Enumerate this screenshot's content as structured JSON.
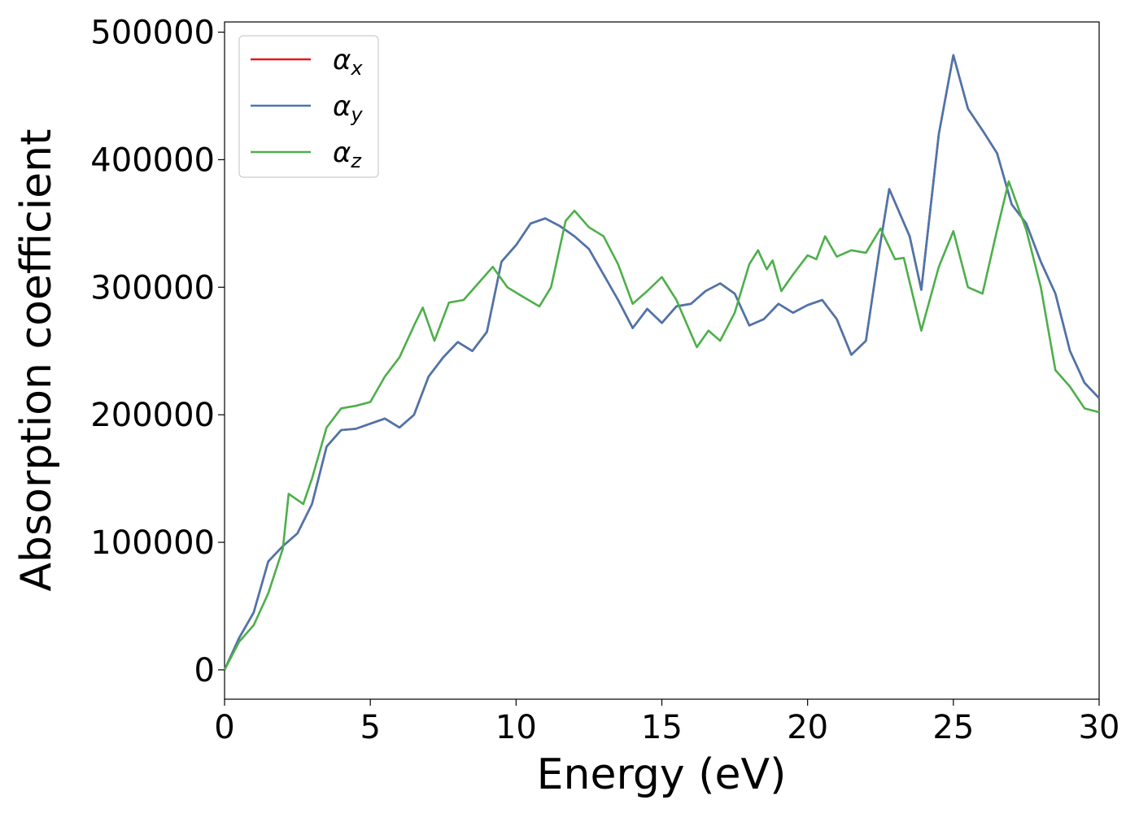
{
  "chart_data": {
    "type": "line",
    "xlabel": "Energy (eV)",
    "ylabel": "Absorption coefficient",
    "xlim": [
      0,
      30
    ],
    "xticks": [
      0,
      5,
      10,
      15,
      20,
      25,
      30
    ],
    "ylim": [
      -23000,
      508000
    ],
    "yticks": [
      0,
      100000,
      200000,
      300000,
      400000,
      500000
    ],
    "legend": "upper left",
    "series": [
      {
        "name": "αx",
        "color": "#e41a1c",
        "x": [
          0,
          0.5,
          1,
          1.5,
          2,
          2.5,
          3,
          3.5,
          4,
          4.5,
          5,
          5.5,
          6,
          6.5,
          7,
          7.5,
          8,
          8.5,
          9,
          9.5,
          10,
          10.5,
          11,
          11.5,
          12,
          12.5,
          13,
          13.5,
          14,
          14.5,
          15,
          15.5,
          16,
          16.5,
          17,
          17.5,
          18,
          18.5,
          19,
          19.5,
          20,
          20.5,
          21,
          21.5,
          22,
          22.5,
          22.8,
          23.5,
          23.9,
          24.5,
          25,
          25.5,
          26,
          26.5,
          27,
          27.5,
          28,
          28.5,
          29,
          29.5,
          30
        ],
        "values": [
          0,
          25000,
          45000,
          85000,
          97000,
          107000,
          130000,
          175000,
          188000,
          189000,
          193000,
          197000,
          190000,
          200000,
          230000,
          245000,
          257000,
          250000,
          265000,
          320000,
          333000,
          350000,
          354000,
          348000,
          340000,
          330000,
          310000,
          290000,
          268000,
          283000,
          272000,
          285000,
          287000,
          297000,
          303000,
          295000,
          270000,
          275000,
          287000,
          280000,
          286000,
          290000,
          275000,
          247000,
          258000,
          335000,
          377000,
          340000,
          298000,
          420000,
          482000,
          440000,
          423000,
          405000,
          365000,
          350000,
          320000,
          295000,
          250000,
          225000,
          213000
        ]
      },
      {
        "name": "αy",
        "color": "#4a76ac",
        "x": [
          0,
          0.5,
          1,
          1.5,
          2,
          2.5,
          3,
          3.5,
          4,
          4.5,
          5,
          5.5,
          6,
          6.5,
          7,
          7.5,
          8,
          8.5,
          9,
          9.5,
          10,
          10.5,
          11,
          11.5,
          12,
          12.5,
          13,
          13.5,
          14,
          14.5,
          15,
          15.5,
          16,
          16.5,
          17,
          17.5,
          18,
          18.5,
          19,
          19.5,
          20,
          20.5,
          21,
          21.5,
          22,
          22.5,
          22.8,
          23.5,
          23.9,
          24.5,
          25,
          25.5,
          26,
          26.5,
          27,
          27.5,
          28,
          28.5,
          29,
          29.5,
          30
        ],
        "values": [
          0,
          25000,
          45000,
          85000,
          97000,
          107000,
          130000,
          175000,
          188000,
          189000,
          193000,
          197000,
          190000,
          200000,
          230000,
          245000,
          257000,
          250000,
          265000,
          320000,
          333000,
          350000,
          354000,
          348000,
          340000,
          330000,
          310000,
          290000,
          268000,
          283000,
          272000,
          285000,
          287000,
          297000,
          303000,
          295000,
          270000,
          275000,
          287000,
          280000,
          286000,
          290000,
          275000,
          247000,
          258000,
          335000,
          377000,
          340000,
          298000,
          420000,
          482000,
          440000,
          423000,
          405000,
          365000,
          350000,
          320000,
          295000,
          250000,
          225000,
          213000
        ]
      },
      {
        "name": "αz",
        "color": "#4daf4a",
        "x": [
          0,
          0.5,
          1,
          1.5,
          2,
          2.2,
          2.7,
          3,
          3.5,
          4,
          4.5,
          5,
          5.5,
          6,
          6.5,
          6.8,
          7.2,
          7.7,
          8.2,
          8.7,
          9.2,
          9.7,
          10.2,
          10.8,
          11.2,
          11.7,
          12,
          12.5,
          13,
          13.5,
          14,
          14.5,
          15,
          15.5,
          16.2,
          16.6,
          17,
          17.5,
          18,
          18.3,
          18.6,
          18.8,
          19.1,
          19.5,
          20,
          20.3,
          20.6,
          21,
          21.5,
          22,
          22.5,
          23,
          23.3,
          23.9,
          24.5,
          25,
          25.5,
          26,
          26.5,
          26.9,
          27.5,
          28,
          28.5,
          29,
          29.5,
          30
        ],
        "values": [
          0,
          22000,
          35000,
          60000,
          95000,
          138000,
          130000,
          150000,
          190000,
          205000,
          207000,
          210000,
          230000,
          245000,
          270000,
          284000,
          258000,
          288000,
          290000,
          303000,
          316000,
          300000,
          293000,
          285000,
          300000,
          352000,
          360000,
          347000,
          340000,
          318000,
          287000,
          297000,
          308000,
          290000,
          253000,
          266000,
          258000,
          280000,
          318000,
          329000,
          314000,
          321000,
          297000,
          310000,
          325000,
          322000,
          340000,
          324000,
          329000,
          327000,
          346000,
          322000,
          323000,
          266000,
          316000,
          344000,
          300000,
          295000,
          345000,
          383000,
          345000,
          300000,
          235000,
          222000,
          205000,
          202000
        ]
      }
    ]
  }
}
